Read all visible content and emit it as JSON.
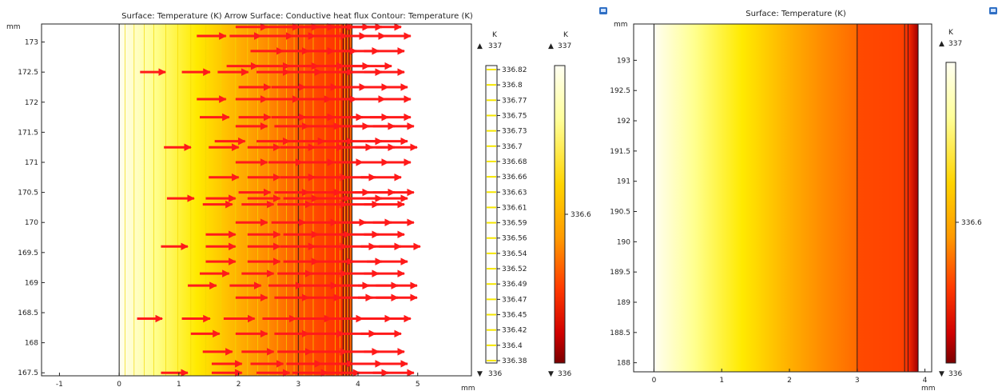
{
  "colors": {
    "arrow": "#ff1a1a",
    "contour": "#f3d900",
    "frame": "#222222",
    "boundary_line": "#1a1a1a",
    "legend_tick_mark": "#f5e600",
    "export_icon": "#2f6fc4"
  },
  "icons": {
    "export": "image-export-icon"
  },
  "chart_data": [
    {
      "type": "heatmap",
      "title": "Surface: Temperature (K)  Arrow Surface: Conductive heat flux  Contour: Temperature (K)",
      "x_unit": "mm",
      "y_unit": "mm",
      "xlim": [
        -1.3,
        5.9
      ],
      "ylim": [
        167.45,
        173.3
      ],
      "x_ticks": [
        "-1",
        "0",
        "1",
        "2",
        "3",
        "4",
        "5"
      ],
      "y_ticks": [
        "167.5",
        "168",
        "168.5",
        "169",
        "169.5",
        "170",
        "170.5",
        "171",
        "171.5",
        "172",
        "172.5",
        "173"
      ],
      "domain_x": [
        0,
        3.9
      ],
      "interfaces_x": [
        3.0,
        3.75,
        3.8,
        3.85
      ],
      "surface": {
        "quantity": "Temperature",
        "unit": "K",
        "colormap": "ThermalLight",
        "min": 336,
        "max": 337,
        "gradient_stops": [
          {
            "x": 0.0,
            "color": "#fffef2"
          },
          {
            "x": 0.6,
            "color": "#ffff8f"
          },
          {
            "x": 1.3,
            "color": "#ffea00"
          },
          {
            "x": 2.0,
            "color": "#ffb000"
          },
          {
            "x": 2.5,
            "color": "#ff8a00"
          },
          {
            "x": 3.0,
            "color": "#ff5a00"
          },
          {
            "x": 3.9,
            "color": "#ff2500"
          }
        ]
      },
      "contour": {
        "levels": [
          "336.82",
          "336.8",
          "336.77",
          "336.75",
          "336.73",
          "336.7",
          "336.68",
          "336.66",
          "336.63",
          "336.61",
          "336.59",
          "336.56",
          "336.54",
          "336.52",
          "336.49",
          "336.47",
          "336.45",
          "336.42",
          "336.4",
          "336.38"
        ],
        "x_positions": [
          0.1,
          0.25,
          0.42,
          0.58,
          0.78,
          0.98,
          1.2,
          1.45,
          1.7,
          1.95,
          2.15,
          2.32,
          2.5,
          2.65,
          2.8,
          2.93,
          3.1,
          3.25,
          3.45,
          3.62,
          3.7,
          3.78,
          3.83,
          3.88
        ]
      },
      "arrows": {
        "quantity": "Conductive heat flux",
        "rows": [
          {
            "y": 173.25,
            "x": [
              1.95,
              2.45,
              2.75,
              3.0,
              3.3,
              3.55,
              3.75,
              4.05
            ]
          },
          {
            "y": 173.1,
            "x": [
              1.3,
              1.85,
              2.35,
              2.7,
              3.2,
              3.5,
              3.8,
              4.2
            ]
          },
          {
            "y": 172.85,
            "x": [
              2.2,
              2.6,
              3.0,
              3.35,
              3.7,
              4.1
            ]
          },
          {
            "y": 172.6,
            "x": [
              1.8,
              2.3,
              2.75,
              3.15,
              3.55,
              3.9
            ]
          },
          {
            "y": 172.5,
            "x": [
              0.35,
              1.05,
              1.65,
              2.3,
              2.8,
              3.3,
              3.75,
              4.1
            ]
          },
          {
            "y": 172.25,
            "x": [
              2.0,
              2.55,
              3.05,
              3.5,
              3.85,
              4.15
            ]
          },
          {
            "y": 172.05,
            "x": [
              1.3,
              1.95,
              2.45,
              2.95,
              3.35,
              3.8,
              4.2
            ]
          },
          {
            "y": 171.75,
            "x": [
              1.35,
              2.0,
              2.55,
              3.0,
              3.45,
              3.85,
              4.2
            ]
          },
          {
            "y": 171.6,
            "x": [
              1.95,
              2.6,
              3.1,
              3.55,
              3.95,
              4.25
            ]
          },
          {
            "y": 171.35,
            "x": [
              1.6,
              2.3,
              2.85,
              3.3,
              3.75,
              4.15
            ]
          },
          {
            "y": 171.25,
            "x": [
              0.75,
              1.5,
              2.15,
              2.7,
              3.15,
              3.6,
              3.95,
              4.3
            ]
          },
          {
            "y": 171.0,
            "x": [
              1.95,
              2.5,
              3.0,
              3.45,
              3.85,
              4.2
            ]
          },
          {
            "y": 170.75,
            "x": [
              1.5,
              2.15,
              2.7,
              3.2,
              3.65,
              4.05
            ]
          },
          {
            "y": 170.5,
            "x": [
              2.0,
              2.6,
              3.1,
              3.55,
              3.95,
              4.25
            ]
          },
          {
            "y": 170.4,
            "x": [
              0.8,
              1.45,
              2.15,
              2.75,
              3.25,
              3.75,
              4.15
            ]
          },
          {
            "y": 170.3,
            "x": [
              1.4,
              2.05,
              2.65,
              3.2,
              3.7,
              4.1
            ]
          },
          {
            "y": 170.0,
            "x": [
              1.95,
              2.55,
              3.05,
              3.5,
              3.9,
              4.25
            ]
          },
          {
            "y": 169.8,
            "x": [
              1.45,
              2.15,
              2.75,
              3.25,
              3.7,
              4.1
            ]
          },
          {
            "y": 169.6,
            "x": [
              0.7,
              1.45,
              2.15,
              2.7,
              3.2,
              3.65,
              4.05,
              4.35
            ]
          },
          {
            "y": 169.35,
            "x": [
              1.45,
              2.15,
              2.75,
              3.3,
              3.75,
              4.15
            ]
          },
          {
            "y": 169.15,
            "x": [
              1.35,
              2.05,
              2.65,
              3.2,
              3.7,
              4.1
            ]
          },
          {
            "y": 168.95,
            "x": [
              1.15,
              1.85,
              2.5,
              3.05,
              3.55,
              4.0,
              4.3
            ]
          },
          {
            "y": 168.75,
            "x": [
              1.95,
              2.6,
              3.1,
              3.6,
              4.0,
              4.3
            ]
          },
          {
            "y": 168.4,
            "x": [
              0.3,
              1.05,
              1.75,
              2.4,
              2.95,
              3.45,
              3.9,
              4.2
            ]
          },
          {
            "y": 168.15,
            "x": [
              1.2,
              1.95,
              2.6,
              3.15,
              3.65,
              4.05
            ]
          },
          {
            "y": 167.85,
            "x": [
              1.4,
              2.05,
              2.65,
              3.2,
              3.7,
              4.1
            ]
          },
          {
            "y": 167.65,
            "x": [
              1.55,
              2.2,
              2.8,
              3.3,
              3.75,
              4.15
            ]
          },
          {
            "y": 167.5,
            "x": [
              0.7,
              1.55,
              2.3,
              2.9,
              3.4,
              3.85,
              4.25
            ]
          }
        ]
      },
      "legends": [
        {
          "unit": "K",
          "max": "337",
          "min": "336",
          "kind": "contour"
        },
        {
          "unit": "K",
          "max": "337",
          "min": "336",
          "label": "336.6",
          "kind": "surface"
        }
      ]
    },
    {
      "type": "heatmap",
      "title": "Surface: Temperature (K)",
      "x_unit": "mm",
      "y_unit": "mm",
      "xlim": [
        -0.3,
        4.1
      ],
      "ylim": [
        187.85,
        193.6
      ],
      "x_ticks": [
        "0",
        "1",
        "2",
        "3",
        "4"
      ],
      "y_ticks": [
        "188",
        "188.5",
        "189",
        "189.5",
        "190",
        "190.5",
        "191",
        "191.5",
        "192",
        "192.5",
        "193"
      ],
      "domain_x": [
        0,
        3.9
      ],
      "interfaces_x": [
        3.0,
        3.7,
        3.75
      ],
      "surface": {
        "quantity": "Temperature",
        "unit": "K",
        "colormap": "ThermalLight",
        "min": 336,
        "max": 337,
        "gradient_stops": [
          {
            "x": 0.0,
            "color": "#fffef2"
          },
          {
            "x": 0.6,
            "color": "#ffff8f"
          },
          {
            "x": 1.3,
            "color": "#ffea00"
          },
          {
            "x": 2.0,
            "color": "#ffb000"
          },
          {
            "x": 2.5,
            "color": "#ff8a00"
          },
          {
            "x": 2.99,
            "color": "#ff6a00"
          },
          {
            "x": 3.0,
            "color": "#ff4a00"
          },
          {
            "x": 3.7,
            "color": "#ff4000"
          },
          {
            "x": 3.75,
            "color": "#ff2a00"
          },
          {
            "x": 3.9,
            "color": "#a00000"
          }
        ]
      },
      "legends": [
        {
          "unit": "K",
          "max": "337",
          "min": "336",
          "label": "336.6",
          "kind": "surface"
        }
      ]
    }
  ]
}
